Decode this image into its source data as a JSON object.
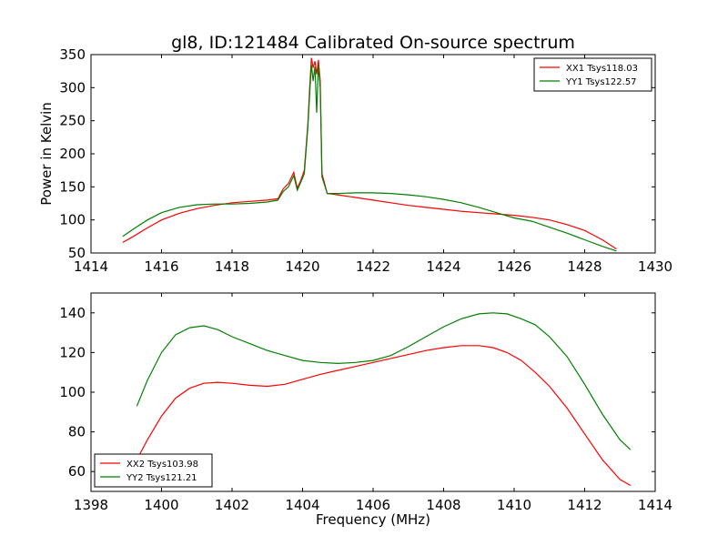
{
  "chart_data": [
    {
      "type": "line",
      "title": "gl8, ID:121484 Calibrated On-source spectrum",
      "xlabel": "",
      "ylabel": "Power in Kelvin",
      "xlim": [
        1414,
        1430
      ],
      "ylim": [
        50,
        350
      ],
      "xticks": [
        "1414",
        "1416",
        "1418",
        "1420",
        "1422",
        "1424",
        "1426",
        "1428",
        "1430"
      ],
      "yticks": [
        "50",
        "100",
        "150",
        "200",
        "250",
        "300",
        "350"
      ],
      "grid": false,
      "legend": "top-right",
      "series": [
        {
          "name": "XX1 Tsys118.03",
          "color": "#ff0000",
          "x": [
            1414.9,
            1415.2,
            1415.6,
            1416.0,
            1416.5,
            1417.0,
            1417.5,
            1418.0,
            1418.5,
            1419.0,
            1419.3,
            1419.45,
            1419.6,
            1419.75,
            1419.85,
            1419.95,
            1420.05,
            1420.15,
            1420.2,
            1420.25,
            1420.3,
            1420.35,
            1420.4,
            1420.45,
            1420.5,
            1420.55,
            1420.7,
            1421.0,
            1421.5,
            1422.0,
            1422.5,
            1423.0,
            1423.5,
            1424.0,
            1424.5,
            1425.0,
            1425.5,
            1426.0,
            1426.5,
            1427.0,
            1427.5,
            1428.0,
            1428.5,
            1428.9
          ],
          "y": [
            66,
            75,
            88,
            100,
            110,
            117,
            122,
            126,
            128,
            130,
            132,
            147,
            155,
            172,
            148,
            160,
            175,
            245,
            300,
            345,
            330,
            340,
            320,
            342,
            310,
            170,
            140,
            138,
            134,
            130,
            126,
            122,
            119,
            116,
            113,
            111,
            109,
            107,
            104,
            100,
            93,
            84,
            70,
            56
          ]
        },
        {
          "name": "YY1 Tsys122.57",
          "color": "#008000",
          "x": [
            1414.9,
            1415.2,
            1415.6,
            1416.0,
            1416.5,
            1417.0,
            1417.5,
            1418.0,
            1418.5,
            1419.0,
            1419.3,
            1419.45,
            1419.6,
            1419.75,
            1419.85,
            1419.95,
            1420.05,
            1420.15,
            1420.2,
            1420.25,
            1420.3,
            1420.35,
            1420.4,
            1420.45,
            1420.5,
            1420.55,
            1420.7,
            1421.0,
            1421.5,
            1422.0,
            1422.5,
            1423.0,
            1423.5,
            1424.0,
            1424.5,
            1425.0,
            1425.5,
            1426.0,
            1426.5,
            1427.0,
            1427.5,
            1428.0,
            1428.5,
            1428.9
          ],
          "y": [
            75,
            86,
            100,
            111,
            119,
            123,
            124,
            124,
            125,
            127,
            130,
            143,
            150,
            167,
            145,
            157,
            170,
            240,
            290,
            335,
            310,
            332,
            262,
            335,
            300,
            165,
            140,
            140,
            141,
            141,
            140,
            138,
            135,
            131,
            126,
            119,
            111,
            103,
            98,
            89,
            80,
            70,
            60,
            53
          ]
        }
      ]
    },
    {
      "type": "line",
      "title": "",
      "xlabel": "Frequency (MHz)",
      "ylabel": "",
      "xlim": [
        1398,
        1414
      ],
      "ylim": [
        50,
        150
      ],
      "xticks": [
        "1398",
        "1400",
        "1402",
        "1404",
        "1406",
        "1408",
        "1410",
        "1412",
        "1414"
      ],
      "yticks": [
        "60",
        "80",
        "100",
        "120",
        "140"
      ],
      "grid": false,
      "legend": "bottom-left",
      "series": [
        {
          "name": "XX2 Tsys103.98",
          "color": "#ff0000",
          "x": [
            1399.3,
            1399.6,
            1400.0,
            1400.4,
            1400.8,
            1401.2,
            1401.6,
            1402.0,
            1402.5,
            1403.0,
            1403.5,
            1404.0,
            1404.5,
            1405.0,
            1405.5,
            1406.0,
            1406.5,
            1407.0,
            1407.5,
            1408.0,
            1408.5,
            1409.0,
            1409.4,
            1409.8,
            1410.2,
            1410.6,
            1411.0,
            1411.5,
            1412.0,
            1412.5,
            1413.0,
            1413.3
          ],
          "y": [
            66,
            76,
            88,
            97,
            102,
            104.5,
            105,
            104.5,
            103.5,
            103,
            104,
            106.5,
            109,
            111,
            113,
            115,
            117,
            119,
            121,
            122.5,
            123.5,
            123.5,
            122.5,
            120,
            116,
            110,
            103,
            92,
            79,
            66,
            56,
            53
          ]
        },
        {
          "name": "YY2 Tsys121.21",
          "color": "#008000",
          "x": [
            1399.3,
            1399.6,
            1400.0,
            1400.4,
            1400.8,
            1401.2,
            1401.6,
            1402.0,
            1402.5,
            1403.0,
            1403.5,
            1404.0,
            1404.5,
            1405.0,
            1405.5,
            1406.0,
            1406.5,
            1407.0,
            1407.5,
            1408.0,
            1408.5,
            1409.0,
            1409.4,
            1409.8,
            1410.2,
            1410.6,
            1411.0,
            1411.5,
            1412.0,
            1412.5,
            1413.0,
            1413.3
          ],
          "y": [
            93,
            106,
            120,
            129,
            132.5,
            133.5,
            131.5,
            128,
            124.5,
            121,
            118.5,
            116,
            115,
            114.5,
            115,
            116,
            118.5,
            123,
            128,
            133,
            137,
            139.5,
            140,
            139.5,
            137,
            134,
            128,
            118,
            104,
            89,
            76,
            71
          ]
        }
      ]
    }
  ]
}
